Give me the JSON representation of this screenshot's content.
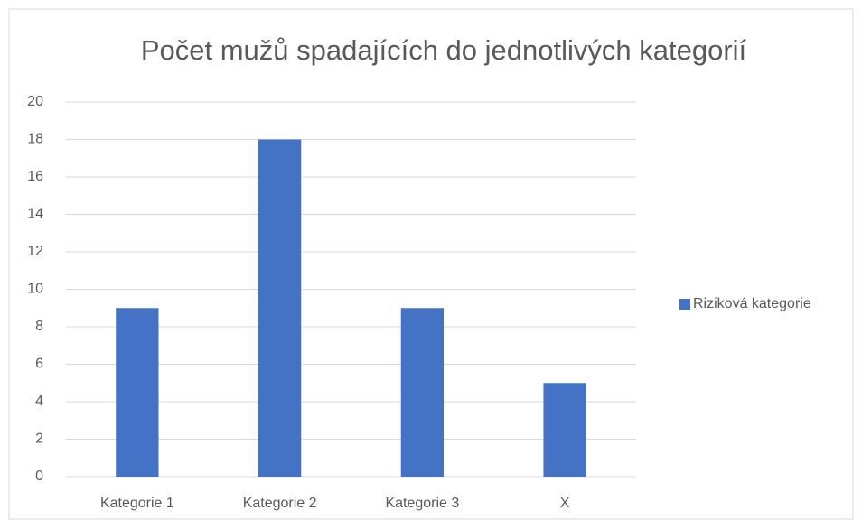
{
  "chart_data": {
    "type": "bar",
    "title": "Počet mužů spadajících do jednotlivých kategorií",
    "categories": [
      "Kategorie 1",
      "Kategorie 2",
      "Kategorie 3",
      "X"
    ],
    "series": [
      {
        "name": "Riziková kategorie",
        "color": "#4472c4",
        "values": [
          9,
          18,
          9,
          5
        ]
      }
    ],
    "ylim": [
      0,
      20
    ],
    "yticks": [
      0,
      2,
      4,
      6,
      8,
      10,
      12,
      14,
      16,
      18,
      20
    ],
    "grid": true,
    "legend": "right"
  }
}
